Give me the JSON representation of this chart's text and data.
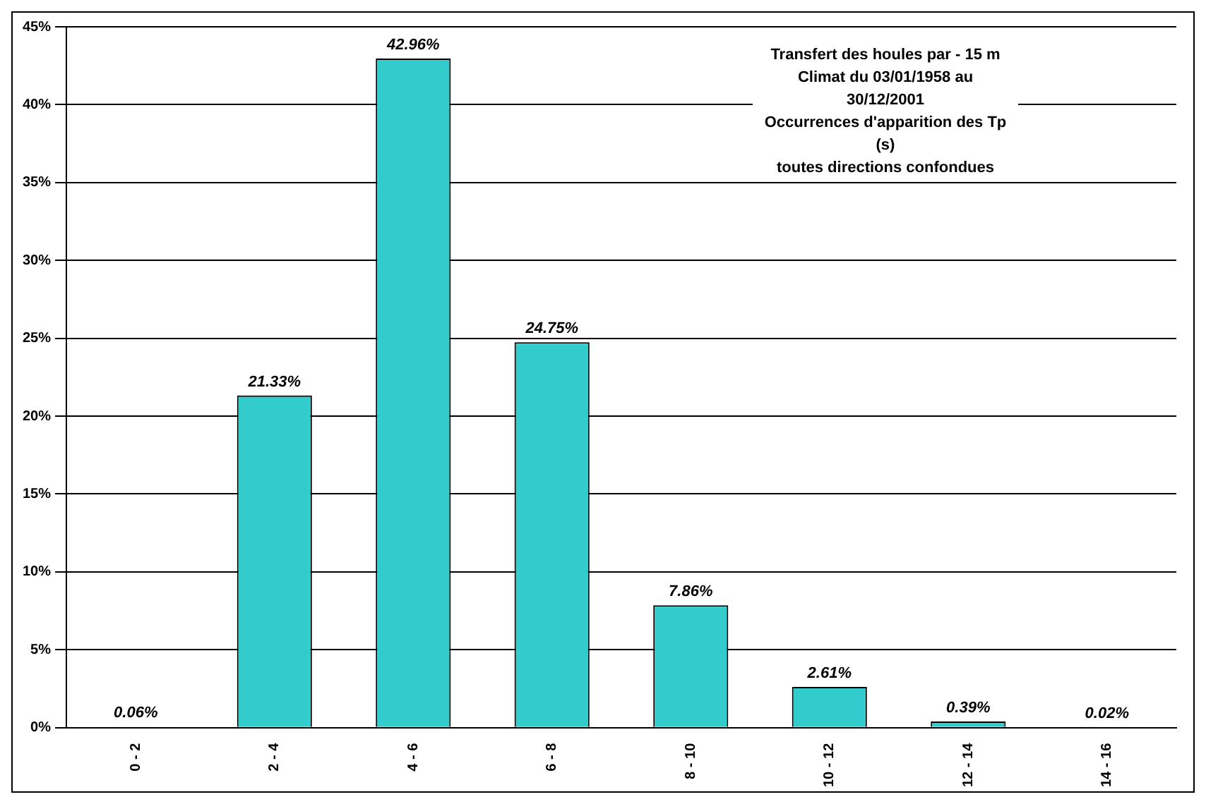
{
  "chart_data": {
    "type": "bar",
    "title": "Transfert des houles par - 15 m\nClimat du 03/01/1958 au 30/12/2001\nOccurrences d'apparition des Tp (s)\ntoutes directions confondues",
    "categories": [
      "0 - 2",
      "2 - 4",
      "4 - 6",
      "6 - 8",
      "8 - 10",
      "10 - 12",
      "12 - 14",
      "14 - 16"
    ],
    "values": [
      0.06,
      21.33,
      42.96,
      24.75,
      7.86,
      2.61,
      0.39,
      0.02
    ],
    "value_labels": [
      "0.06%",
      "21.33%",
      "42.96%",
      "24.75%",
      "7.86%",
      "2.61%",
      "0.39%",
      "0.02%"
    ],
    "color": "#33cccc",
    "ylim": [
      0,
      45
    ],
    "yticks": [
      {
        "value": 0,
        "label": "0%"
      },
      {
        "value": 5,
        "label": "5%"
      },
      {
        "value": 10,
        "label": "10%"
      },
      {
        "value": 15,
        "label": "15%"
      },
      {
        "value": 20,
        "label": "20%"
      },
      {
        "value": 25,
        "label": "25%"
      },
      {
        "value": 30,
        "label": "30%"
      },
      {
        "value": 35,
        "label": "35%"
      },
      {
        "value": 40,
        "label": "40%"
      },
      {
        "value": 45,
        "label": "45%"
      }
    ],
    "grid": "y",
    "legend": false
  }
}
